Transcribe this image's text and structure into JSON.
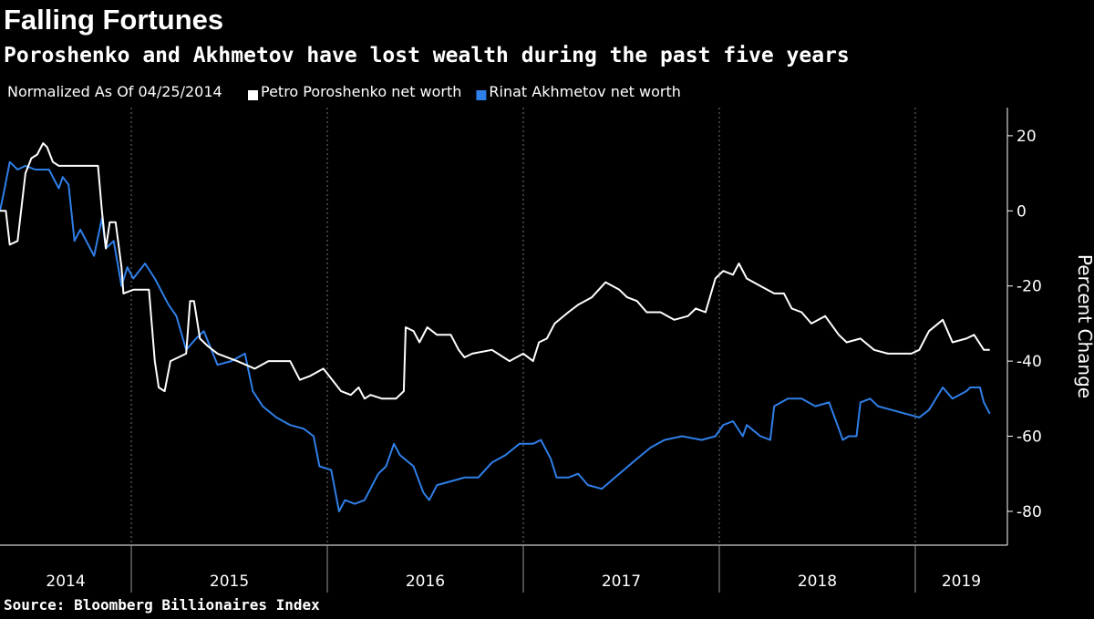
{
  "chart_data": {
    "type": "line",
    "title": "Falling Fortunes",
    "subtitle": "Poroshenko and Akhmetov have lost wealth during the past five years",
    "note": "Normalized As Of 04/25/2014",
    "y_label": "Percent Change",
    "source": "Source: Bloomberg Billionaires Index",
    "year_labels": [
      "2014",
      "2015",
      "2016",
      "2017",
      "2018",
      "2019"
    ],
    "xlim": [
      2014.33,
      2019.47
    ],
    "xticks": [
      2015,
      2016,
      2017,
      2018,
      2019
    ],
    "ylim": [
      -89,
      27.5
    ],
    "yticks": [
      20,
      0,
      -20,
      -40,
      -60,
      -80
    ],
    "grid": true,
    "series": [
      {
        "name": "Petro Poroshenko net worth",
        "color": "#ffffff",
        "x": [
          2014.33,
          2014.36,
          2014.38,
          2014.42,
          2014.46,
          2014.49,
          2014.52,
          2014.55,
          2014.57,
          2014.6,
          2014.63,
          2014.83,
          2014.85,
          2014.87,
          2014.89,
          2014.92,
          2014.95,
          2014.96,
          2015.01,
          2015.09,
          2015.12,
          2015.14,
          2015.17,
          2015.2,
          2015.24,
          2015.28,
          2015.3,
          2015.32,
          2015.35,
          2015.39,
          2015.44,
          2015.54,
          2015.63,
          2015.7,
          2015.77,
          2015.81,
          2015.86,
          2015.91,
          2015.98,
          2016.04,
          2016.07,
          2016.12,
          2016.16,
          2016.19,
          2016.22,
          2016.28,
          2016.35,
          2016.39,
          2016.4,
          2016.44,
          2016.47,
          2016.51,
          2016.56,
          2016.63,
          2016.67,
          2016.7,
          2016.74,
          2016.84,
          2016.93,
          2017.0,
          2017.05,
          2017.08,
          2017.12,
          2017.16,
          2017.23,
          2017.28,
          2017.35,
          2017.42,
          2017.49,
          2017.53,
          2017.58,
          2017.63,
          2017.7,
          2017.77,
          2017.84,
          2017.88,
          2017.93,
          2017.98,
          2018.02,
          2018.07,
          2018.1,
          2018.14,
          2018.21,
          2018.28,
          2018.33,
          2018.37,
          2018.42,
          2018.47,
          2018.54,
          2018.61,
          2018.65,
          2018.72,
          2018.79,
          2018.86,
          2018.93,
          2018.98,
          2019.02,
          2019.07,
          2019.14,
          2019.19,
          2019.26,
          2019.3,
          2019.35,
          2019.38
        ],
        "values": [
          0,
          0,
          -9,
          -8,
          10,
          14,
          15,
          18,
          17,
          13,
          12,
          12,
          0,
          -10,
          -3,
          -3,
          -15,
          -22,
          -21,
          -21,
          -40,
          -47,
          -48,
          -40,
          -39,
          -38,
          -24,
          -24,
          -34,
          -36,
          -38,
          -40,
          -42,
          -40,
          -40,
          -40,
          -45,
          -44,
          -42,
          -46,
          -48,
          -49,
          -47,
          -50,
          -49,
          -50,
          -50,
          -48,
          -31,
          -32,
          -35,
          -31,
          -33,
          -33,
          -37,
          -39,
          -38,
          -37,
          -40,
          -38,
          -40,
          -35,
          -34,
          -30,
          -27,
          -25,
          -23,
          -19,
          -21,
          -23,
          -24,
          -27,
          -27,
          -29,
          -28,
          -26,
          -27,
          -18,
          -16,
          -17,
          -14,
          -18,
          -20,
          -22,
          -22,
          -26,
          -27,
          -30,
          -28,
          -33,
          -35,
          -34,
          -37,
          -38,
          -38,
          -38,
          -37,
          -32,
          -29,
          -35,
          -34,
          -33,
          -37,
          -37
        ]
      },
      {
        "name": "Rinat Akhmetov net worth",
        "color": "#2f7fe8",
        "x": [
          2014.33,
          2014.35,
          2014.38,
          2014.42,
          2014.46,
          2014.51,
          2014.58,
          2014.63,
          2014.65,
          2014.68,
          2014.71,
          2014.74,
          2014.79,
          2014.81,
          2014.85,
          2014.87,
          2014.91,
          2014.95,
          2014.98,
          2015.01,
          2015.07,
          2015.12,
          2015.19,
          2015.23,
          2015.28,
          2015.33,
          2015.37,
          2015.44,
          2015.51,
          2015.58,
          2015.62,
          2015.67,
          2015.74,
          2015.81,
          2015.88,
          2015.93,
          2015.96,
          2016.02,
          2016.06,
          2016.09,
          2016.14,
          2016.19,
          2016.26,
          2016.3,
          2016.34,
          2016.37,
          2016.44,
          2016.49,
          2016.52,
          2016.56,
          2016.63,
          2016.7,
          2016.77,
          2016.84,
          2016.91,
          2016.98,
          2017.05,
          2017.09,
          2017.14,
          2017.17,
          2017.23,
          2017.28,
          2017.33,
          2017.4,
          2017.49,
          2017.58,
          2017.65,
          2017.72,
          2017.81,
          2017.91,
          2017.98,
          2018.02,
          2018.07,
          2018.12,
          2018.14,
          2018.21,
          2018.26,
          2018.28,
          2018.35,
          2018.42,
          2018.49,
          2018.56,
          2018.61,
          2018.63,
          2018.66,
          2018.7,
          2018.72,
          2018.77,
          2018.81,
          2018.88,
          2018.95,
          2019.02,
          2019.07,
          2019.14,
          2019.19,
          2019.26,
          2019.28,
          2019.33,
          2019.35,
          2019.38
        ],
        "values": [
          0,
          5,
          13,
          11,
          12,
          11,
          11,
          6,
          9,
          7,
          -8,
          -5,
          -10,
          -12,
          -2,
          -10,
          -8,
          -20,
          -15,
          -18,
          -14,
          -18,
          -25,
          -28,
          -37,
          -34,
          -32,
          -41,
          -40,
          -38,
          -48,
          -52,
          -55,
          -57,
          -58,
          -60,
          -68,
          -69,
          -80,
          -77,
          -78,
          -77,
          -70,
          -68,
          -62,
          -65,
          -68,
          -75,
          -77,
          -73,
          -72,
          -71,
          -71,
          -67,
          -65,
          -62,
          -62,
          -61,
          -66,
          -71,
          -71,
          -70,
          -73,
          -74,
          -70,
          -66,
          -63,
          -61,
          -60,
          -61,
          -60,
          -57,
          -56,
          -60,
          -57,
          -60,
          -61,
          -52,
          -50,
          -50,
          -52,
          -51,
          -58,
          -61,
          -60,
          -60,
          -51,
          -50,
          -52,
          -53,
          -54,
          -55,
          -53,
          -47,
          -50,
          -48,
          -47,
          -47,
          -51,
          -54
        ]
      }
    ]
  }
}
